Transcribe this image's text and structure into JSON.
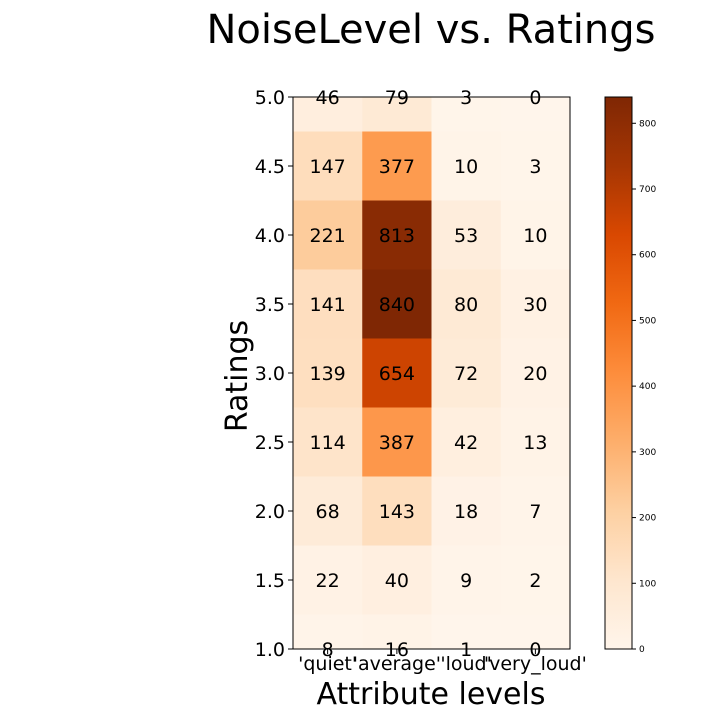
{
  "chart_data": {
    "type": "heatmap",
    "title": "NoiseLevel vs. Ratings",
    "xlabel": "Attribute levels",
    "ylabel": "Ratings",
    "x_categories": [
      "'quiet'",
      "'average'",
      "'loud'",
      "'very_loud'"
    ],
    "y_ticks": [
      "1.0",
      "1.5",
      "2.0",
      "2.5",
      "3.0",
      "3.5",
      "4.0",
      "4.5",
      "5.0"
    ],
    "rows": [
      {
        "rating": "5.0",
        "values": [
          46,
          79,
          3,
          0
        ]
      },
      {
        "rating": "4.5",
        "values": [
          147,
          377,
          10,
          3
        ]
      },
      {
        "rating": "4.0",
        "values": [
          221,
          813,
          53,
          10
        ]
      },
      {
        "rating": "3.5",
        "values": [
          141,
          840,
          80,
          30
        ]
      },
      {
        "rating": "3.0",
        "values": [
          139,
          654,
          72,
          20
        ]
      },
      {
        "rating": "2.5",
        "values": [
          114,
          387,
          42,
          13
        ]
      },
      {
        "rating": "2.0",
        "values": [
          68,
          143,
          18,
          7
        ]
      },
      {
        "rating": "1.5",
        "values": [
          22,
          40,
          9,
          2
        ]
      },
      {
        "rating": "1.0",
        "values": [
          8,
          16,
          1,
          0
        ]
      }
    ],
    "colorbar": {
      "colormap": "Oranges",
      "min": 0,
      "max": 840,
      "ticks": [
        "0",
        "100",
        "200",
        "300",
        "400",
        "500",
        "600",
        "700",
        "800"
      ]
    },
    "grid": false
  }
}
